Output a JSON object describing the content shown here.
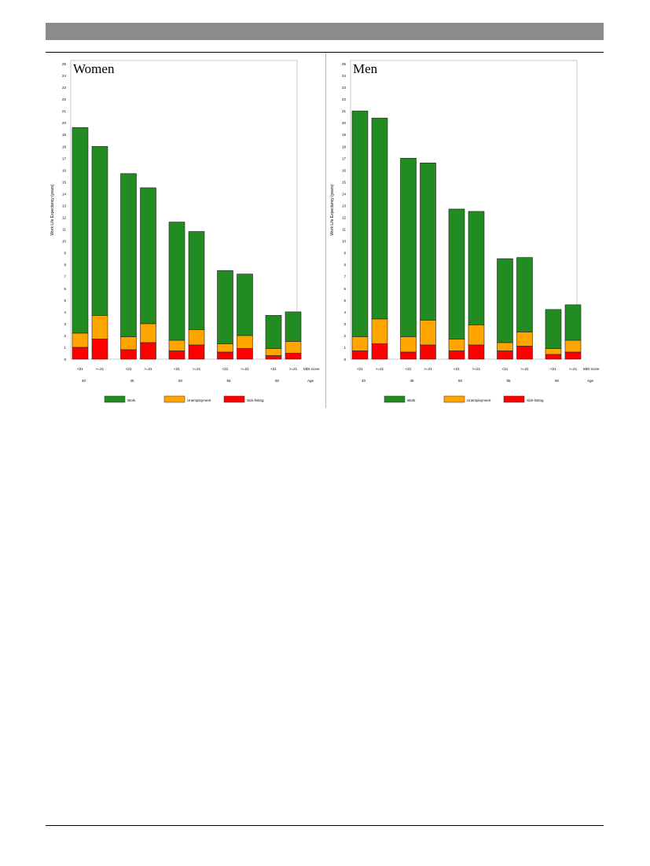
{
  "chart_data": [
    {
      "type": "bar",
      "stacked": true,
      "title": "Women",
      "ylabel": "Work Life Expectancy (years)",
      "ylim": [
        0,
        25
      ],
      "yticks": [
        "0",
        "1",
        "2",
        "3",
        "4",
        "5",
        "6",
        "7",
        "8",
        "9",
        "10",
        "11",
        "12",
        "13",
        "14",
        "15",
        "16",
        "17",
        "18",
        "19",
        "20",
        "21",
        "22",
        "23",
        "24",
        "25"
      ],
      "grid": false,
      "categories": [
        "<21",
        ">=21",
        "<21",
        ">=21",
        "<21",
        ">=21",
        "<21",
        ">=21",
        "<21",
        ">=21"
      ],
      "category_axis_label": "MDI score",
      "age_groups": [
        "40",
        "45",
        "50",
        "55",
        "60"
      ],
      "age_axis_label": "Age",
      "series": [
        {
          "name": "Sick-listing",
          "color": "#ff0000",
          "values": [
            1.0,
            1.7,
            0.8,
            1.4,
            0.7,
            1.2,
            0.6,
            0.9,
            0.3,
            0.5
          ]
        },
        {
          "name": "Unemployment",
          "color": "#ffa500",
          "values": [
            1.2,
            2.0,
            1.1,
            1.6,
            0.9,
            1.3,
            0.7,
            1.1,
            0.6,
            1.0
          ]
        },
        {
          "name": "Work",
          "color": "#228b22",
          "values": [
            17.4,
            14.3,
            13.8,
            11.5,
            10.0,
            8.3,
            6.2,
            5.2,
            2.8,
            2.5
          ]
        }
      ],
      "legend": [
        {
          "name": "Work",
          "color": "#228b22"
        },
        {
          "name": "Unemployment",
          "color": "#ffa500"
        },
        {
          "name": "Sick-listing",
          "color": "#ff0000"
        }
      ],
      "legend_position": "bottom"
    },
    {
      "type": "bar",
      "stacked": true,
      "title": "Men",
      "ylabel": "Work Life Expectancy (years)",
      "ylim": [
        0,
        25
      ],
      "yticks": [
        "0",
        "1",
        "2",
        "3",
        "4",
        "5",
        "6",
        "7",
        "8",
        "9",
        "10",
        "11",
        "12",
        "13",
        "14",
        "15",
        "16",
        "17",
        "18",
        "19",
        "20",
        "21",
        "22",
        "23",
        "24",
        "25"
      ],
      "grid": false,
      "categories": [
        "<21",
        ">=21",
        "<21",
        ">=21",
        "<21",
        ">=21",
        "<21",
        ">=21",
        "<21",
        ">=21"
      ],
      "category_axis_label": "MDI score",
      "age_groups": [
        "40",
        "45",
        "50",
        "55",
        "60"
      ],
      "age_axis_label": "Age",
      "series": [
        {
          "name": "Sick-listing",
          "color": "#ff0000",
          "values": [
            0.7,
            1.3,
            0.6,
            1.2,
            0.7,
            1.2,
            0.7,
            1.1,
            0.4,
            0.6
          ]
        },
        {
          "name": "Unemployment",
          "color": "#ffa500",
          "values": [
            1.2,
            2.1,
            1.3,
            2.1,
            1.0,
            1.7,
            0.7,
            1.2,
            0.5,
            1.0
          ]
        },
        {
          "name": "Work",
          "color": "#228b22",
          "values": [
            19.1,
            17.0,
            15.1,
            13.3,
            11.0,
            9.6,
            7.1,
            6.3,
            3.3,
            3.0
          ]
        }
      ],
      "legend": [
        {
          "name": "Work",
          "color": "#228b22"
        },
        {
          "name": "Unemployment",
          "color": "#ffa500"
        },
        {
          "name": "Sick-listing",
          "color": "#ff0000"
        }
      ],
      "legend_position": "bottom"
    }
  ]
}
